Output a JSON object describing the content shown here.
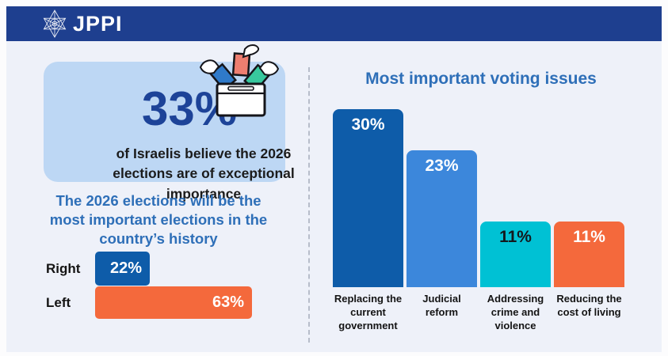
{
  "header": {
    "logo_text": "JPPI"
  },
  "left_panel": {
    "stat_card": {
      "value": "33%",
      "description": "of Israelis believe the 2026 elections are of exceptional importance"
    },
    "statement_heading": "The 2026 elections will be the most important elections in the country’s history"
  },
  "right_panel": {
    "title": "Most important voting issues"
  },
  "chart_data": [
    {
      "type": "bar",
      "orientation": "horizontal",
      "title": "The 2026 elections will be the most important elections in the country’s history",
      "categories": [
        "Right",
        "Left"
      ],
      "values": [
        22,
        63
      ],
      "value_labels": [
        "22%",
        "63%"
      ],
      "colors": [
        "#0E5CA9",
        "#F4693C"
      ],
      "xlim": [
        0,
        100
      ],
      "grid": false,
      "legend": false
    },
    {
      "type": "bar",
      "orientation": "vertical",
      "title": "Most important voting issues",
      "categories": [
        "Replacing the current government",
        "Judicial reform",
        "Addressing crime and violence",
        "Reducing the cost of living"
      ],
      "values": [
        30,
        23,
        11,
        11
      ],
      "value_labels": [
        "30%",
        "23%",
        "11%",
        "11%"
      ],
      "colors": [
        "#0E5CA9",
        "#3C87DB",
        "#00C1D4",
        "#F4693C"
      ],
      "value_label_colors": [
        "#ffffff",
        "#ffffff",
        "#14181d",
        "#ffffff"
      ],
      "ylim": [
        0,
        35
      ],
      "grid": false,
      "legend": false
    }
  ],
  "colors": {
    "header_bg": "#1E3F8F",
    "content_bg": "#EEF1F9",
    "card_bg": "#BDD7F4",
    "stat_value_blue": "#1D4398",
    "heading_blue": "#2E6FB8",
    "text_dark": "#1B1B1B",
    "ballot_red": "#EE7E70",
    "ballot_blue": "#2F7AC9",
    "ballot_teal": "#38C89E"
  }
}
